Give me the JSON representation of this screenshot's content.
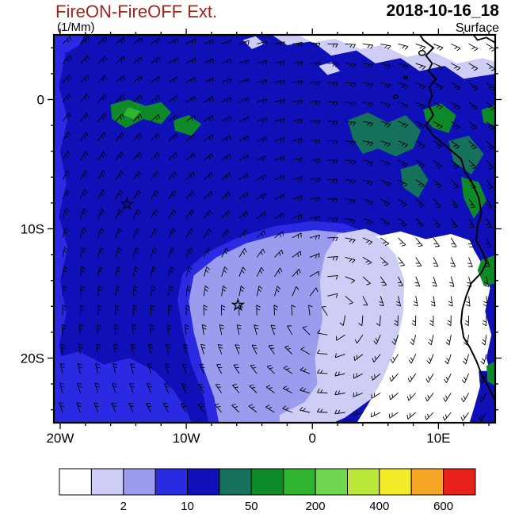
{
  "header": {
    "title": "FireON-FireOFF Ext.",
    "units": "(1/Mm)",
    "datetime": "2018-10-16_18",
    "level": "Surface",
    "title_color": "#A2251B"
  },
  "chart_data": {
    "type": "heatmap",
    "title": "FireON-FireOFF Ext.",
    "units": "(1/Mm)",
    "timestamp": "2018-10-16_18",
    "level_label": "Surface",
    "projection": "lonlat",
    "extent": {
      "lon_min": -20.5,
      "lon_max": 14.5,
      "lat_min": -25,
      "lat_max": 5
    },
    "x_ticks": [
      {
        "value": -20,
        "label": "20W"
      },
      {
        "value": -10,
        "label": "10W"
      },
      {
        "value": 0,
        "label": "0"
      },
      {
        "value": 10,
        "label": "10E"
      }
    ],
    "y_ticks": [
      {
        "value": 0,
        "label": "0"
      },
      {
        "value": -10,
        "label": "10S"
      },
      {
        "value": -20,
        "label": "20S"
      }
    ],
    "minor_tick_step": 2,
    "levels": [
      1,
      2,
      5,
      10,
      20,
      50,
      100,
      200,
      300,
      400,
      500,
      600
    ],
    "colorbar_labels": [
      {
        "text": "2",
        "boundary": 2
      },
      {
        "text": "10",
        "boundary": 4
      },
      {
        "text": "50",
        "boundary": 6
      },
      {
        "text": "200",
        "boundary": 8
      },
      {
        "text": "400",
        "boundary": 10
      },
      {
        "text": "600",
        "boundary": 12
      }
    ],
    "colors": [
      "#FFFFFF",
      "#CDCDF5",
      "#9C9CEF",
      "#2A2AE3",
      "#1010B8",
      "#15705C",
      "#0F8A28",
      "#30B430",
      "#6FD850",
      "#BCE83C",
      "#F5EA28",
      "#F5A423",
      "#E8211B"
    ],
    "base_level": 4,
    "field_regions": [
      {
        "name": "left-edge-strip",
        "level": 3,
        "pts": [
          [
            -20.5,
            5.2
          ],
          [
            -19.6,
            3.5
          ],
          [
            -20.1,
            1.0
          ],
          [
            -19.4,
            -1.5
          ],
          [
            -20.0,
            -4.0
          ],
          [
            -19.5,
            -6.5
          ],
          [
            -20.1,
            -9.0
          ],
          [
            -19.4,
            -11.5
          ],
          [
            -20.0,
            -14.0
          ],
          [
            -19.5,
            -16.5
          ],
          [
            -20.1,
            -19.0
          ],
          [
            -19.6,
            -21.5
          ],
          [
            -20.0,
            -24.0
          ],
          [
            -19.7,
            -25.2
          ],
          [
            -20.5,
            -25.2
          ]
        ]
      },
      {
        "name": "top-left-corner",
        "level": 3,
        "pts": [
          [
            -20.5,
            5.2
          ],
          [
            -18.0,
            5.2
          ],
          [
            -18.5,
            4.2
          ],
          [
            -19.5,
            3.6
          ],
          [
            -20.5,
            3.8
          ]
        ]
      },
      {
        "name": "bottom-left-region",
        "level": 3,
        "pts": [
          [
            -20.5,
            -20.0
          ],
          [
            -18.5,
            -19.5
          ],
          [
            -16.5,
            -20.5
          ],
          [
            -14.5,
            -20.0
          ],
          [
            -12.5,
            -21.0
          ],
          [
            -11.0,
            -22.5
          ],
          [
            -10.0,
            -24.0
          ],
          [
            -9.5,
            -25.2
          ],
          [
            -20.5,
            -25.2
          ]
        ]
      },
      {
        "name": "central-blob-fringe",
        "level": 3,
        "pts": [
          [
            -10.3,
            -13.5
          ],
          [
            -8.5,
            -11.9
          ],
          [
            -6.0,
            -10.7
          ],
          [
            -3.0,
            -9.8
          ],
          [
            0.0,
            -9.4
          ],
          [
            2.5,
            -9.6
          ],
          [
            4.6,
            -10.4
          ],
          [
            6.0,
            -11.6
          ],
          [
            6.6,
            -13.2
          ],
          [
            6.3,
            -15.0
          ],
          [
            6.8,
            -17.0
          ],
          [
            6.1,
            -19.3
          ],
          [
            4.9,
            -21.4
          ],
          [
            3.2,
            -23.0
          ],
          [
            1.0,
            -24.3
          ],
          [
            -0.8,
            -25.2
          ],
          [
            -8.2,
            -25.2
          ],
          [
            -8.6,
            -23.0
          ],
          [
            -9.6,
            -20.5
          ],
          [
            -10.3,
            -17.8
          ],
          [
            -10.7,
            -15.5
          ]
        ]
      },
      {
        "name": "central-blob",
        "level": 2,
        "pts": [
          [
            -9.4,
            -13.6
          ],
          [
            -7.6,
            -12.2
          ],
          [
            -5.2,
            -11.1
          ],
          [
            -2.5,
            -10.4
          ],
          [
            0.2,
            -10.1
          ],
          [
            2.4,
            -10.3
          ],
          [
            4.1,
            -11.1
          ],
          [
            5.2,
            -12.2
          ],
          [
            5.8,
            -13.6
          ],
          [
            5.5,
            -15.2
          ],
          [
            5.9,
            -17.0
          ],
          [
            5.3,
            -19.0
          ],
          [
            4.2,
            -20.9
          ],
          [
            2.6,
            -22.4
          ],
          [
            0.4,
            -23.6
          ],
          [
            -1.4,
            -24.6
          ],
          [
            -1.8,
            -25.1
          ],
          [
            -7.4,
            -25.1
          ],
          [
            -7.8,
            -23.0
          ],
          [
            -8.7,
            -20.6
          ],
          [
            -9.4,
            -18.0
          ],
          [
            -9.8,
            -15.6
          ]
        ]
      },
      {
        "name": "lavender-zone",
        "level": 1,
        "pts": [
          [
            2.0,
            -10.4
          ],
          [
            4.2,
            -10.0
          ],
          [
            6.2,
            -10.8
          ],
          [
            7.5,
            -12.2
          ],
          [
            8.1,
            -14.2
          ],
          [
            8.0,
            -16.8
          ],
          [
            7.3,
            -19.2
          ],
          [
            6.2,
            -21.4
          ],
          [
            4.6,
            -23.2
          ],
          [
            2.6,
            -24.6
          ],
          [
            1.2,
            -25.2
          ],
          [
            -2.6,
            -25.2
          ],
          [
            -2.6,
            -24.4
          ],
          [
            -0.6,
            -23.4
          ],
          [
            0.4,
            -22.0
          ],
          [
            0.2,
            -20.0
          ],
          [
            0.8,
            -17.0
          ],
          [
            0.6,
            -14.0
          ],
          [
            1.0,
            -12.0
          ]
        ]
      },
      {
        "name": "white-zone",
        "level": 0,
        "pts": [
          [
            5.0,
            -10.6
          ],
          [
            7.0,
            -10.2
          ],
          [
            9.0,
            -10.8
          ],
          [
            11.0,
            -10.4
          ],
          [
            12.8,
            -11.0
          ],
          [
            14.0,
            -11.8
          ],
          [
            13.5,
            -13.0
          ],
          [
            14.1,
            -14.6
          ],
          [
            13.7,
            -16.4
          ],
          [
            14.2,
            -18.2
          ],
          [
            13.8,
            -20.0
          ],
          [
            14.3,
            -21.8
          ],
          [
            13.9,
            -23.6
          ],
          [
            14.4,
            -25.2
          ],
          [
            3.4,
            -25.2
          ],
          [
            4.4,
            -23.6
          ],
          [
            5.6,
            -21.6
          ],
          [
            6.6,
            -19.2
          ],
          [
            7.2,
            -16.6
          ],
          [
            7.3,
            -14.0
          ],
          [
            6.6,
            -12.0
          ],
          [
            5.6,
            -10.9
          ]
        ]
      },
      {
        "name": "coast-strip-north",
        "level": 4,
        "pts": [
          [
            12.4,
            -9.4
          ],
          [
            14.6,
            -9.4
          ],
          [
            14.6,
            -13.2
          ],
          [
            13.5,
            -12.8
          ],
          [
            12.8,
            -11.6
          ],
          [
            12.3,
            -10.4
          ]
        ]
      },
      {
        "name": "coast-strip-south",
        "level": 4,
        "pts": [
          [
            13.2,
            -21.0
          ],
          [
            14.6,
            -21.0
          ],
          [
            14.6,
            -25.2
          ],
          [
            12.4,
            -25.2
          ],
          [
            12.9,
            -23.6
          ],
          [
            13.3,
            -22.2
          ]
        ]
      },
      {
        "name": "top-band-lavender",
        "level": 1,
        "pts": [
          [
            -3.5,
            5.2
          ],
          [
            -2.0,
            4.2
          ],
          [
            0.0,
            4.5
          ],
          [
            1.5,
            3.4
          ],
          [
            3.5,
            3.8
          ],
          [
            5.0,
            2.8
          ],
          [
            7.0,
            3.2
          ],
          [
            8.5,
            2.2
          ],
          [
            10.5,
            2.6
          ],
          [
            12.0,
            1.6
          ],
          [
            14.6,
            2.0
          ],
          [
            14.6,
            5.2
          ]
        ]
      },
      {
        "name": "top-band-white",
        "level": 0,
        "pts": [
          [
            -1.5,
            5.2
          ],
          [
            0.0,
            4.4
          ],
          [
            1.8,
            4.7
          ],
          [
            3.8,
            3.9
          ],
          [
            5.5,
            4.2
          ],
          [
            7.5,
            3.3
          ],
          [
            9.5,
            3.7
          ],
          [
            11.5,
            2.8
          ],
          [
            13.5,
            3.2
          ],
          [
            14.6,
            2.9
          ],
          [
            14.6,
            5.2
          ]
        ]
      },
      {
        "name": "lavender-speck-1",
        "level": 1,
        "pts": [
          [
            -5.5,
            4.6
          ],
          [
            -4.5,
            4.9
          ],
          [
            -3.8,
            4.3
          ],
          [
            -4.8,
            3.9
          ]
        ]
      },
      {
        "name": "lavender-speck-2",
        "level": 1,
        "pts": [
          [
            0.5,
            2.6
          ],
          [
            1.5,
            2.9
          ],
          [
            2.2,
            2.2
          ],
          [
            1.2,
            1.9
          ]
        ]
      },
      {
        "name": "green-west-1",
        "level": 6,
        "pts": [
          [
            -16.0,
            -0.4
          ],
          [
            -14.6,
            0.0
          ],
          [
            -13.2,
            -0.5
          ],
          [
            -12.0,
            -0.2
          ],
          [
            -11.2,
            -1.0
          ],
          [
            -12.0,
            -1.9
          ],
          [
            -13.4,
            -1.5
          ],
          [
            -14.8,
            -2.2
          ],
          [
            -15.9,
            -1.5
          ]
        ]
      },
      {
        "name": "green-west-core",
        "level": 7,
        "pts": [
          [
            -14.6,
            -0.6
          ],
          [
            -13.6,
            -0.9
          ],
          [
            -14.2,
            -1.5
          ],
          [
            -15.0,
            -1.2
          ]
        ]
      },
      {
        "name": "green-west-2",
        "level": 6,
        "pts": [
          [
            -11.0,
            -1.6
          ],
          [
            -9.8,
            -1.2
          ],
          [
            -8.8,
            -1.9
          ],
          [
            -9.6,
            -2.8
          ],
          [
            -10.9,
            -2.4
          ]
        ]
      },
      {
        "name": "teal-central",
        "level": 5,
        "pts": [
          [
            2.8,
            -1.6
          ],
          [
            4.4,
            -1.0
          ],
          [
            6.0,
            -1.8
          ],
          [
            7.4,
            -1.2
          ],
          [
            8.6,
            -2.4
          ],
          [
            8.0,
            -3.8
          ],
          [
            6.6,
            -4.4
          ],
          [
            5.2,
            -3.8
          ],
          [
            4.0,
            -4.2
          ],
          [
            3.2,
            -3.0
          ]
        ]
      },
      {
        "name": "teal-south-spot",
        "level": 5,
        "pts": [
          [
            7.0,
            -5.4
          ],
          [
            8.4,
            -5.0
          ],
          [
            9.2,
            -6.2
          ],
          [
            8.4,
            -7.6
          ],
          [
            7.2,
            -6.8
          ]
        ]
      },
      {
        "name": "green-coast-north",
        "level": 6,
        "pts": [
          [
            8.8,
            -0.8
          ],
          [
            10.2,
            -0.3
          ],
          [
            11.4,
            -1.2
          ],
          [
            10.8,
            -2.6
          ],
          [
            9.6,
            -2.2
          ],
          [
            9.0,
            -1.6
          ]
        ]
      },
      {
        "name": "teal-coast",
        "level": 5,
        "pts": [
          [
            10.8,
            -3.2
          ],
          [
            12.4,
            -2.8
          ],
          [
            13.6,
            -4.2
          ],
          [
            12.6,
            -5.8
          ],
          [
            11.2,
            -4.8
          ]
        ]
      },
      {
        "name": "green-coast-mid",
        "level": 6,
        "pts": [
          [
            11.8,
            -6.0
          ],
          [
            13.2,
            -6.4
          ],
          [
            13.8,
            -7.8
          ],
          [
            12.8,
            -9.2
          ],
          [
            12.0,
            -7.6
          ]
        ]
      },
      {
        "name": "green-edge-ne",
        "level": 6,
        "pts": [
          [
            13.4,
            -0.8
          ],
          [
            14.6,
            -0.4
          ],
          [
            14.6,
            -2.0
          ],
          [
            13.6,
            -1.8
          ]
        ]
      },
      {
        "name": "green-edge-1",
        "level": 6,
        "pts": [
          [
            13.4,
            -12.4
          ],
          [
            14.6,
            -12.0
          ],
          [
            14.6,
            -14.2
          ],
          [
            13.6,
            -14.4
          ],
          [
            13.1,
            -13.2
          ]
        ]
      },
      {
        "name": "green-edge-2",
        "level": 6,
        "pts": [
          [
            13.8,
            -20.6
          ],
          [
            14.6,
            -20.2
          ],
          [
            14.6,
            -22.2
          ],
          [
            13.9,
            -21.8
          ]
        ]
      }
    ],
    "wind_barbs": {
      "circulation_center": [
        1.5,
        -16.5
      ],
      "rotation": "ccw",
      "lon_step": 1.4,
      "lat_step": 1.5,
      "weak_radius_deg": 4
    },
    "markers": [
      {
        "lon": -14.7,
        "lat": -8.1,
        "symbol": "star"
      },
      {
        "lon": -5.9,
        "lat": -15.9,
        "symbol": "star"
      }
    ],
    "coastline": [
      [
        8.4,
        5.2
      ],
      [
        8.8,
        4.6
      ],
      [
        9.6,
        4.0
      ],
      [
        9.0,
        3.4
      ],
      [
        9.5,
        2.8
      ],
      [
        9.2,
        2.2
      ],
      [
        9.8,
        1.6
      ],
      [
        9.3,
        1.0
      ],
      [
        9.5,
        0.3
      ],
      [
        9.2,
        -0.4
      ],
      [
        9.6,
        -1.2
      ],
      [
        9.0,
        -2.0
      ],
      [
        9.6,
        -2.8
      ],
      [
        10.6,
        -3.6
      ],
      [
        11.8,
        -4.6
      ],
      [
        12.1,
        -5.6
      ],
      [
        12.6,
        -6.3
      ],
      [
        13.2,
        -7.6
      ],
      [
        13.4,
        -8.8
      ],
      [
        13.1,
        -9.8
      ],
      [
        13.0,
        -10.9
      ],
      [
        13.5,
        -11.8
      ],
      [
        13.8,
        -12.6
      ],
      [
        13.4,
        -13.4
      ],
      [
        12.6,
        -14.2
      ],
      [
        12.2,
        -15.2
      ],
      [
        11.9,
        -16.2
      ],
      [
        11.8,
        -17.2
      ],
      [
        12.0,
        -18.4
      ],
      [
        12.5,
        -19.2
      ],
      [
        13.0,
        -20.2
      ],
      [
        13.4,
        -21.2
      ],
      [
        14.0,
        -22.3
      ],
      [
        14.5,
        -23.3
      ]
    ],
    "coast_fragment": [
      [
        12.6,
        5.2
      ],
      [
        13.1,
        4.6
      ],
      [
        13.8,
        4.8
      ],
      [
        14.5,
        4.4
      ]
    ],
    "islands": [
      {
        "lon": 8.7,
        "lat": 3.6,
        "r": 4.0
      },
      {
        "lon": 7.4,
        "lat": 1.7,
        "r": 2.2
      },
      {
        "lon": 6.6,
        "lat": 0.2,
        "r": 2.8
      }
    ]
  }
}
